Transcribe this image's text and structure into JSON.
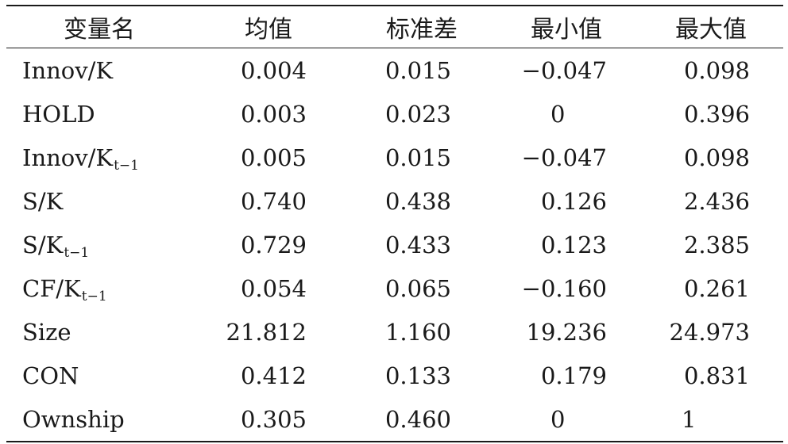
{
  "table": {
    "headers": [
      "变量名",
      "均值",
      "标准差",
      "最小值",
      "最大值"
    ],
    "rows": [
      {
        "name": "Innov/K",
        "sub": "",
        "mean": "0.004",
        "sd": "0.015",
        "min": "−0.047",
        "max": "0.098"
      },
      {
        "name": "HOLD",
        "sub": "",
        "mean": "0.003",
        "sd": "0.023",
        "min": "0",
        "max": "0.396"
      },
      {
        "name": "Innov/K",
        "sub": "t−1",
        "mean": "0.005",
        "sd": "0.015",
        "min": "−0.047",
        "max": "0.098"
      },
      {
        "name": "S/K",
        "sub": "",
        "mean": "0.740",
        "sd": "0.438",
        "min": "0.126",
        "max": "2.436"
      },
      {
        "name": "S/K",
        "sub": "t−1",
        "mean": "0.729",
        "sd": "0.433",
        "min": "0.123",
        "max": "2.385"
      },
      {
        "name": "CF/K",
        "sub": "t−1",
        "mean": "0.054",
        "sd": "0.065",
        "min": "−0.160",
        "max": "0.261"
      },
      {
        "name": "Size",
        "sub": "",
        "mean": "21.812",
        "sd": "1.160",
        "min": "19.236",
        "max": "24.973"
      },
      {
        "name": "CON",
        "sub": "",
        "mean": "0.412",
        "sd": "0.133",
        "min": "0.179",
        "max": "0.831"
      },
      {
        "name": "Ownship",
        "sub": "",
        "mean": "0.305",
        "sd": "0.460",
        "min": "0",
        "max": "1"
      }
    ]
  }
}
